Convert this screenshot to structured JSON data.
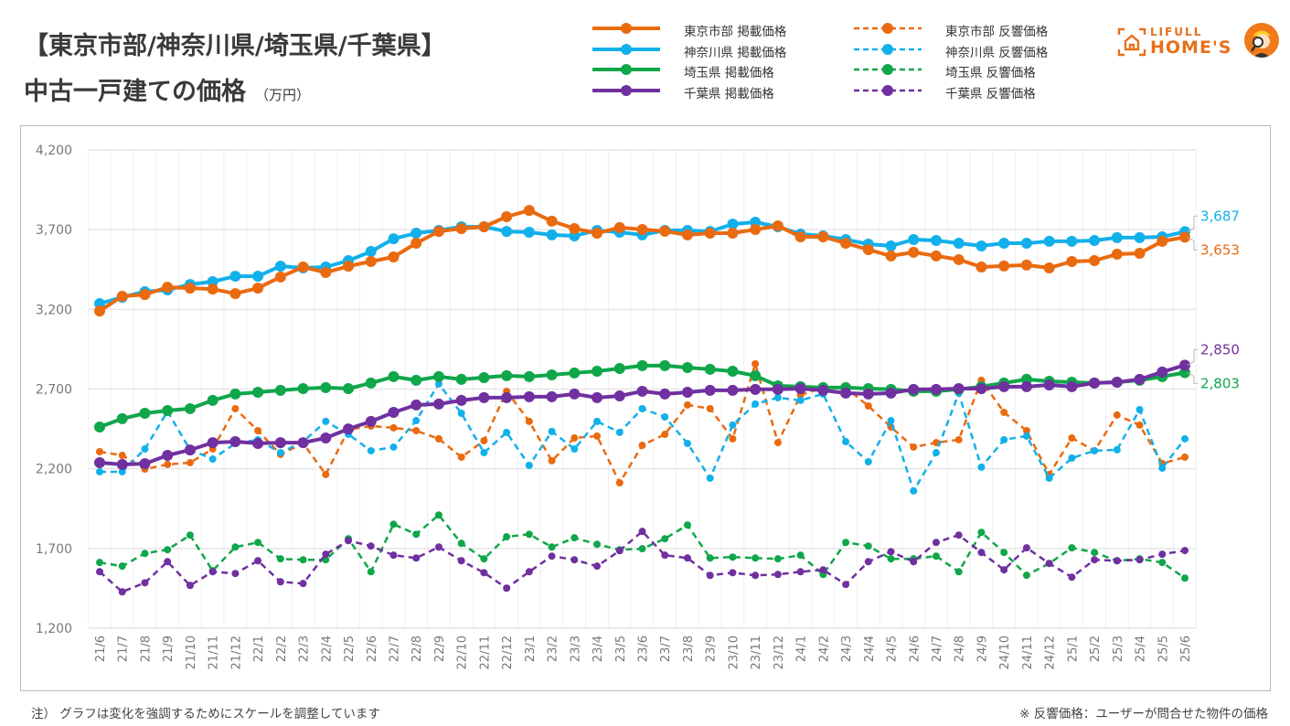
{
  "header": {
    "title_line1": "【東京市部/神奈川県/埼玉県/千葉県】",
    "title_line2": "中古一戸建ての価格",
    "unit": "（万円）"
  },
  "logo": {
    "line1": "LIFULL",
    "line2": "HOME'S",
    "icon": "house-icon",
    "mascot": "mascot-magnifier-icon"
  },
  "notes": {
    "left": "注）  グラフは変化を強調するためにスケールを調整しています",
    "right": "※ 反響価格：ユーザーが問合せた物件の価格"
  },
  "chart_data": {
    "type": "line",
    "title": "【東京市部/神奈川県/埼玉県/千葉県】中古一戸建ての価格（万円）",
    "xlabel": "",
    "ylabel": "万円",
    "ylim": [
      1200,
      4200
    ],
    "yticks": [
      1200,
      1700,
      2200,
      2700,
      3200,
      3700,
      4200
    ],
    "ytick_labels": [
      "1,200",
      "1,700",
      "2,200",
      "2,700",
      "3,200",
      "3,700",
      "4,200"
    ],
    "grid": true,
    "legend_position": "top-right",
    "x": [
      "21/6",
      "21/7",
      "21/8",
      "21/9",
      "21/10",
      "21/11",
      "21/12",
      "22/1",
      "22/2",
      "22/3",
      "22/4",
      "22/5",
      "22/6",
      "22/7",
      "22/8",
      "22/9",
      "22/10",
      "22/11",
      "22/12",
      "23/1",
      "23/2",
      "23/3",
      "23/4",
      "23/5",
      "23/6",
      "23/7",
      "23/8",
      "23/9",
      "23/10",
      "23/11",
      "23/12",
      "24/1",
      "24/2",
      "24/3",
      "24/4",
      "24/5",
      "24/6",
      "24/7",
      "24/8",
      "24/9",
      "24/10",
      "24/11",
      "24/12",
      "25/1",
      "25/2",
      "25/3",
      "25/4",
      "25/5",
      "25/6"
    ],
    "series": [
      {
        "name": "東京市部 掲載価格",
        "color": "#ea6a10",
        "dashed": false,
        "end_label": "3,653",
        "values": [
          3190,
          3282,
          3293,
          3339,
          3333,
          3327,
          3299,
          3333,
          3403,
          3466,
          3431,
          3471,
          3500,
          3529,
          3615,
          3689,
          3707,
          3718,
          3781,
          3821,
          3753,
          3707,
          3678,
          3713,
          3701,
          3690,
          3667,
          3678,
          3678,
          3701,
          3724,
          3655,
          3655,
          3615,
          3575,
          3535,
          3558,
          3535,
          3512,
          3466,
          3472,
          3478,
          3460,
          3500,
          3506,
          3546,
          3552,
          3627,
          3653
        ]
      },
      {
        "name": "神奈川県 掲載価格",
        "color": "#12b0ea",
        "dashed": false,
        "end_label": "3,687",
        "values": [
          3236,
          3276,
          3311,
          3322,
          3356,
          3374,
          3408,
          3408,
          3471,
          3460,
          3466,
          3506,
          3563,
          3643,
          3678,
          3695,
          3718,
          3718,
          3689,
          3684,
          3667,
          3661,
          3695,
          3684,
          3667,
          3695,
          3695,
          3689,
          3735,
          3747,
          3718,
          3672,
          3661,
          3638,
          3609,
          3598,
          3638,
          3632,
          3615,
          3598,
          3615,
          3615,
          3627,
          3627,
          3632,
          3650,
          3650,
          3655,
          3687
        ]
      },
      {
        "name": "埼玉県 掲載価格",
        "color": "#10a64a",
        "dashed": false,
        "end_label": "2,803",
        "values": [
          2462,
          2514,
          2548,
          2565,
          2577,
          2629,
          2669,
          2680,
          2692,
          2703,
          2709,
          2703,
          2738,
          2778,
          2755,
          2778,
          2761,
          2772,
          2784,
          2778,
          2789,
          2801,
          2812,
          2829,
          2847,
          2847,
          2835,
          2824,
          2812,
          2784,
          2720,
          2715,
          2709,
          2709,
          2703,
          2698,
          2686,
          2686,
          2698,
          2715,
          2738,
          2761,
          2749,
          2743,
          2738,
          2743,
          2755,
          2778,
          2803
        ]
      },
      {
        "name": "千葉県 掲載価格",
        "color": "#7030a0",
        "dashed": false,
        "end_label": "2,850",
        "values": [
          2238,
          2227,
          2232,
          2284,
          2318,
          2364,
          2370,
          2359,
          2364,
          2364,
          2393,
          2450,
          2497,
          2554,
          2600,
          2606,
          2629,
          2646,
          2646,
          2652,
          2652,
          2669,
          2646,
          2657,
          2686,
          2669,
          2680,
          2692,
          2692,
          2698,
          2698,
          2703,
          2692,
          2675,
          2669,
          2675,
          2698,
          2698,
          2703,
          2703,
          2715,
          2715,
          2726,
          2715,
          2738,
          2743,
          2761,
          2807,
          2850
        ]
      },
      {
        "name": "東京市部 反響価格",
        "color": "#ea6a10",
        "dashed": true,
        "values": [
          2307,
          2284,
          2198,
          2227,
          2238,
          2324,
          2577,
          2439,
          2290,
          2359,
          2164,
          2445,
          2468,
          2457,
          2439,
          2388,
          2273,
          2376,
          2686,
          2497,
          2250,
          2393,
          2405,
          2112,
          2347,
          2416,
          2600,
          2577,
          2388,
          2858,
          2364,
          2663,
          2709,
          2709,
          2594,
          2462,
          2336,
          2364,
          2382,
          2755,
          2554,
          2439,
          2164,
          2393,
          2313,
          2537,
          2474,
          2233,
          2273
        ]
      },
      {
        "name": "神奈川県 反響価格",
        "color": "#12b0ea",
        "dashed": true,
        "values": [
          2181,
          2181,
          2324,
          2560,
          2319,
          2261,
          2359,
          2382,
          2301,
          2370,
          2497,
          2416,
          2313,
          2336,
          2502,
          2732,
          2548,
          2301,
          2428,
          2221,
          2434,
          2324,
          2497,
          2428,
          2577,
          2525,
          2359,
          2141,
          2474,
          2606,
          2646,
          2629,
          2669,
          2370,
          2244,
          2502,
          2061,
          2301,
          2674,
          2210,
          2382,
          2405,
          2141,
          2267,
          2313,
          2319,
          2571,
          2204,
          2388
        ]
      },
      {
        "name": "埼玉県 反響価格",
        "color": "#10a64a",
        "dashed": true,
        "values": [
          1612,
          1589,
          1669,
          1692,
          1784,
          1560,
          1709,
          1738,
          1635,
          1629,
          1629,
          1761,
          1554,
          1852,
          1789,
          1910,
          1732,
          1635,
          1773,
          1789,
          1709,
          1767,
          1726,
          1692,
          1698,
          1761,
          1847,
          1640,
          1646,
          1640,
          1635,
          1658,
          1537,
          1738,
          1715,
          1635,
          1635,
          1652,
          1554,
          1801,
          1675,
          1532,
          1606,
          1704,
          1675,
          1623,
          1635,
          1612,
          1514
        ]
      },
      {
        "name": "千葉県 反響価格",
        "color": "#7030a0",
        "dashed": true,
        "values": [
          1554,
          1428,
          1485,
          1617,
          1468,
          1554,
          1543,
          1623,
          1491,
          1480,
          1664,
          1749,
          1715,
          1658,
          1640,
          1709,
          1623,
          1548,
          1451,
          1554,
          1652,
          1629,
          1589,
          1686,
          1807,
          1658,
          1640,
          1531,
          1548,
          1531,
          1537,
          1554,
          1566,
          1474,
          1617,
          1680,
          1617,
          1738,
          1784,
          1675,
          1566,
          1704,
          1606,
          1520,
          1629,
          1623,
          1629,
          1664,
          1687
        ]
      }
    ],
    "end_labels": [
      "3,687",
      "3,653",
      "2,850",
      "2,803"
    ]
  }
}
